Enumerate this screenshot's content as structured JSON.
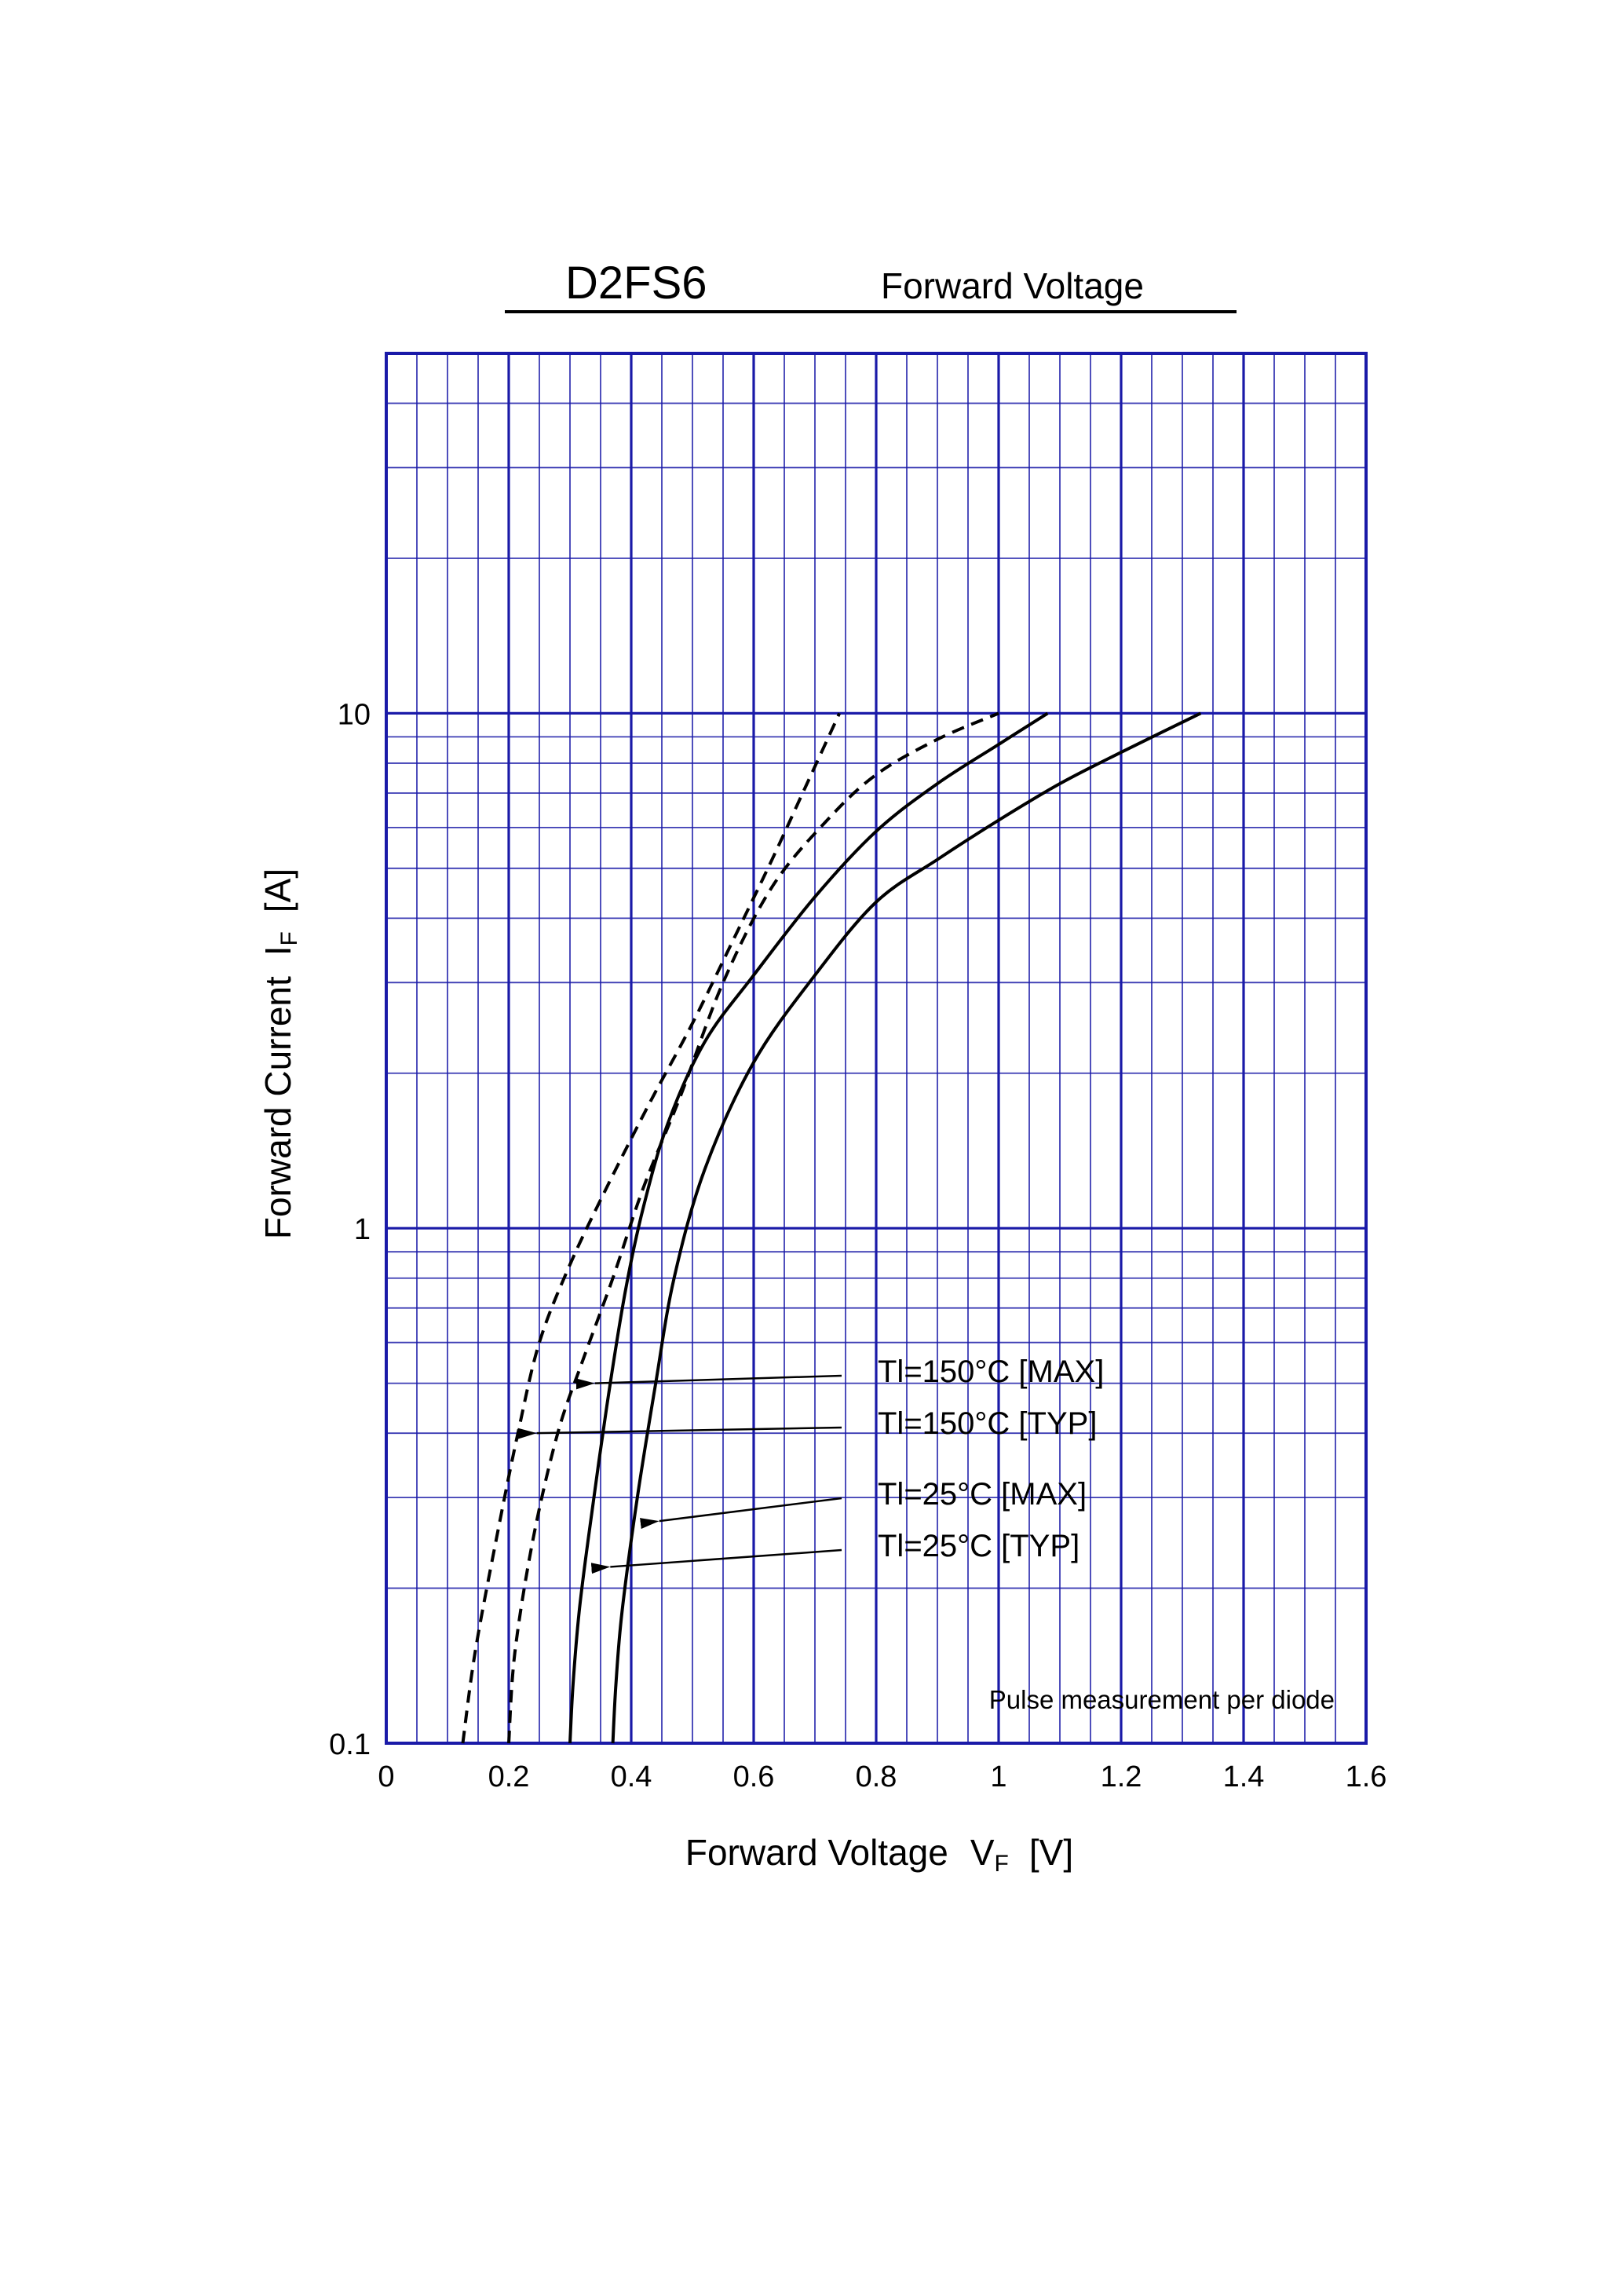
{
  "chart_data": {
    "type": "line",
    "title": "D2FS6",
    "subtitle": "Forward Voltage",
    "xlabel": "Forward Voltage",
    "xlabel_symbol": "V",
    "xlabel_sub": "F",
    "xlabel_unit": "[V]",
    "ylabel": "Forward Current",
    "ylabel_symbol": "I",
    "ylabel_sub": "F",
    "ylabel_unit": "[A]",
    "xlim": [
      0,
      1.6
    ],
    "ylim": [
      0.1,
      50
    ],
    "yscale": "log",
    "grid": true,
    "x_ticks": [
      {
        "value": 0,
        "label": "0"
      },
      {
        "value": 0.2,
        "label": "0.2"
      },
      {
        "value": 0.4,
        "label": "0.4"
      },
      {
        "value": 0.6,
        "label": "0.6"
      },
      {
        "value": 0.8,
        "label": "0.8"
      },
      {
        "value": 1.0,
        "label": "1"
      },
      {
        "value": 1.2,
        "label": "1.2"
      },
      {
        "value": 1.4,
        "label": "1.4"
      },
      {
        "value": 1.6,
        "label": "1.6"
      }
    ],
    "y_ticks": [
      {
        "value": 0.1,
        "label": "0.1"
      },
      {
        "value": 1,
        "label": "1"
      },
      {
        "value": 10,
        "label": "10"
      }
    ],
    "note": "Pulse measurement per diode",
    "series": [
      {
        "name": "Tl=150°C [MAX]",
        "style": "dashed",
        "arrow_at": {
          "x": 0.31,
          "y": 0.5
        },
        "points": [
          [
            0.2,
            0.1
          ],
          [
            0.21,
            0.15
          ],
          [
            0.24,
            0.25
          ],
          [
            0.28,
            0.4
          ],
          [
            0.32,
            0.55
          ],
          [
            0.37,
            0.8
          ],
          [
            0.42,
            1.2
          ],
          [
            0.48,
            1.8
          ],
          [
            0.55,
            3.0
          ],
          [
            0.63,
            4.6
          ],
          [
            0.72,
            6.2
          ],
          [
            0.8,
            7.6
          ],
          [
            0.9,
            8.9
          ],
          [
            1.0,
            10
          ]
        ]
      },
      {
        "name": "Tl=150°C [TYP]",
        "style": "dashed",
        "arrow_at": {
          "x": 0.215,
          "y": 0.4
        },
        "points": [
          [
            0.125,
            0.1
          ],
          [
            0.145,
            0.15
          ],
          [
            0.18,
            0.25
          ],
          [
            0.215,
            0.4
          ],
          [
            0.25,
            0.6
          ],
          [
            0.3,
            0.85
          ],
          [
            0.36,
            1.2
          ],
          [
            0.43,
            1.75
          ],
          [
            0.5,
            2.5
          ],
          [
            0.57,
            3.7
          ],
          [
            0.63,
            5.2
          ],
          [
            0.68,
            7.0
          ],
          [
            0.74,
            10
          ]
        ]
      },
      {
        "name": "Tl=25°C [MAX]",
        "style": "solid",
        "arrow_at": {
          "x": 0.415,
          "y": 0.27
        },
        "points": [
          [
            0.37,
            0.1
          ],
          [
            0.375,
            0.13
          ],
          [
            0.385,
            0.18
          ],
          [
            0.41,
            0.3
          ],
          [
            0.44,
            0.5
          ],
          [
            0.47,
            0.8
          ],
          [
            0.52,
            1.3
          ],
          [
            0.6,
            2.1
          ],
          [
            0.7,
            3.1
          ],
          [
            0.8,
            4.3
          ],
          [
            0.9,
            5.2
          ],
          [
            1.0,
            6.2
          ],
          [
            1.1,
            7.3
          ],
          [
            1.2,
            8.4
          ],
          [
            1.33,
            10
          ]
        ]
      },
      {
        "name": "Tl=25°C [TYP]",
        "style": "solid",
        "arrow_at": {
          "x": 0.335,
          "y": 0.22
        },
        "points": [
          [
            0.3,
            0.1
          ],
          [
            0.305,
            0.13
          ],
          [
            0.315,
            0.18
          ],
          [
            0.33,
            0.25
          ],
          [
            0.36,
            0.45
          ],
          [
            0.39,
            0.75
          ],
          [
            0.42,
            1.1
          ],
          [
            0.46,
            1.6
          ],
          [
            0.52,
            2.3
          ],
          [
            0.6,
            3.1
          ],
          [
            0.7,
            4.4
          ],
          [
            0.8,
            5.9
          ],
          [
            0.9,
            7.3
          ],
          [
            1.0,
            8.7
          ],
          [
            1.08,
            10
          ]
        ]
      }
    ]
  }
}
